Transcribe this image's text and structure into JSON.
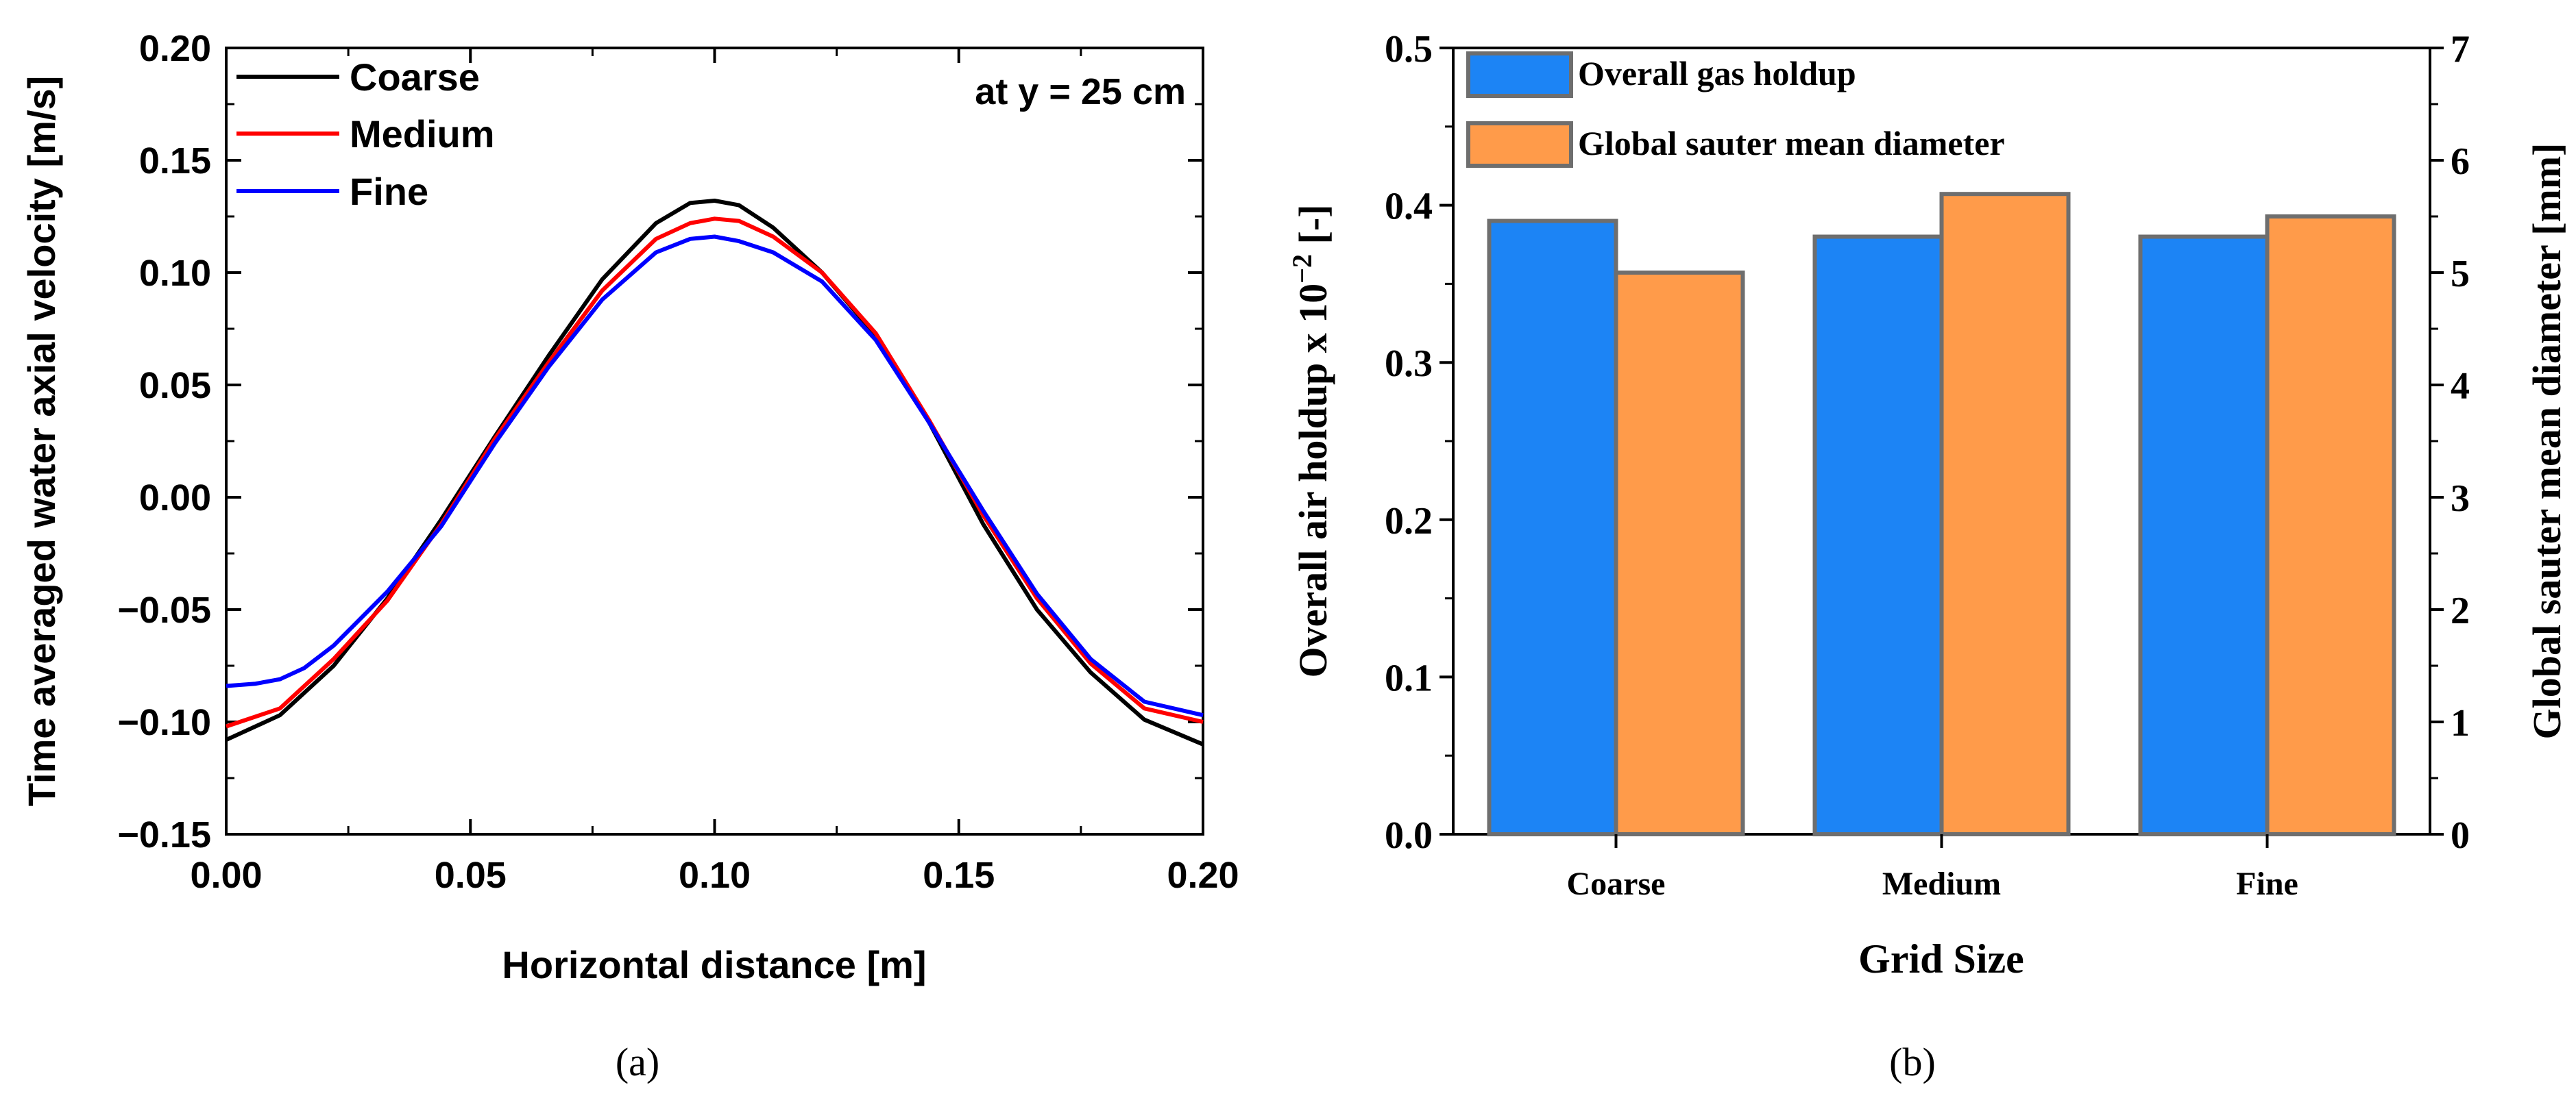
{
  "chart_data": [
    {
      "panel": "a",
      "type": "line",
      "caption": "(a)",
      "xlabel": "Horizontal distance [m]",
      "ylabel": "Time averaged water axial velocity [m/s]",
      "xlim": [
        0.0,
        0.2
      ],
      "ylim": [
        -0.15,
        0.2
      ],
      "xticks": [
        "0.00",
        "0.05",
        "0.10",
        "0.15",
        "0.20"
      ],
      "yticks": [
        "−0.15",
        "−0.10",
        "−0.05",
        "0.00",
        "0.05",
        "0.10",
        "0.15",
        "0.20"
      ],
      "annotation": "at y = 25 cm",
      "series": [
        {
          "name": "Coarse",
          "color": "#000000",
          "x": [
            0.0,
            0.011,
            0.022,
            0.033,
            0.044,
            0.055,
            0.066,
            0.077,
            0.088,
            0.095,
            0.1,
            0.105,
            0.112,
            0.122,
            0.133,
            0.144,
            0.155,
            0.166,
            0.177,
            0.188,
            0.2
          ],
          "y": [
            -0.108,
            -0.097,
            -0.075,
            -0.045,
            -0.01,
            0.027,
            0.063,
            0.097,
            0.122,
            0.131,
            0.132,
            0.13,
            0.12,
            0.1,
            0.072,
            0.033,
            -0.012,
            -0.05,
            -0.078,
            -0.099,
            -0.11
          ]
        },
        {
          "name": "Medium",
          "color": "#ff0000",
          "x": [
            0.0,
            0.011,
            0.022,
            0.033,
            0.044,
            0.055,
            0.066,
            0.077,
            0.088,
            0.095,
            0.1,
            0.105,
            0.112,
            0.122,
            0.133,
            0.144,
            0.155,
            0.166,
            0.177,
            0.188,
            0.2
          ],
          "y": [
            -0.102,
            -0.094,
            -0.072,
            -0.046,
            -0.012,
            0.026,
            0.06,
            0.092,
            0.115,
            0.122,
            0.124,
            0.123,
            0.116,
            0.1,
            0.073,
            0.034,
            -0.008,
            -0.045,
            -0.074,
            -0.094,
            -0.1
          ]
        },
        {
          "name": "Fine",
          "color": "#0000ff",
          "x": [
            0.0,
            0.006,
            0.011,
            0.016,
            0.022,
            0.033,
            0.044,
            0.055,
            0.066,
            0.077,
            0.088,
            0.095,
            0.1,
            0.105,
            0.112,
            0.122,
            0.133,
            0.144,
            0.155,
            0.166,
            0.177,
            0.188,
            0.2
          ],
          "y": [
            -0.084,
            -0.083,
            -0.081,
            -0.076,
            -0.066,
            -0.042,
            -0.013,
            0.024,
            0.058,
            0.088,
            0.109,
            0.115,
            0.116,
            0.114,
            0.109,
            0.096,
            0.07,
            0.033,
            -0.006,
            -0.043,
            -0.072,
            -0.091,
            -0.097
          ]
        }
      ]
    },
    {
      "panel": "b",
      "type": "bar",
      "caption": "(b)",
      "xlabel": "Grid Size",
      "ylabel": "Overall air holdup x 10",
      "ylabel_sup": "−2",
      "ylabel_tail": " [-]",
      "y2label": "Global sauter mean diameter [mm]",
      "categories": [
        "Coarse",
        "Medium",
        "Fine"
      ],
      "ylim": [
        0.0,
        0.5
      ],
      "y2lim": [
        0,
        7
      ],
      "yticks": [
        "0.0",
        "0.1",
        "0.2",
        "0.3",
        "0.4",
        "0.5"
      ],
      "y2ticks": [
        "0",
        "1",
        "2",
        "3",
        "4",
        "5",
        "6",
        "7"
      ],
      "series": [
        {
          "name": "Overall gas holdup",
          "axis": "left",
          "color": "#1c84f5",
          "values": [
            0.39,
            0.38,
            0.38
          ]
        },
        {
          "name": "Global sauter mean diameter",
          "axis": "right",
          "color": "#ff9b4a",
          "values": [
            5.0,
            5.7,
            5.5
          ]
        }
      ],
      "edge_color": "#6e6e6e"
    }
  ]
}
